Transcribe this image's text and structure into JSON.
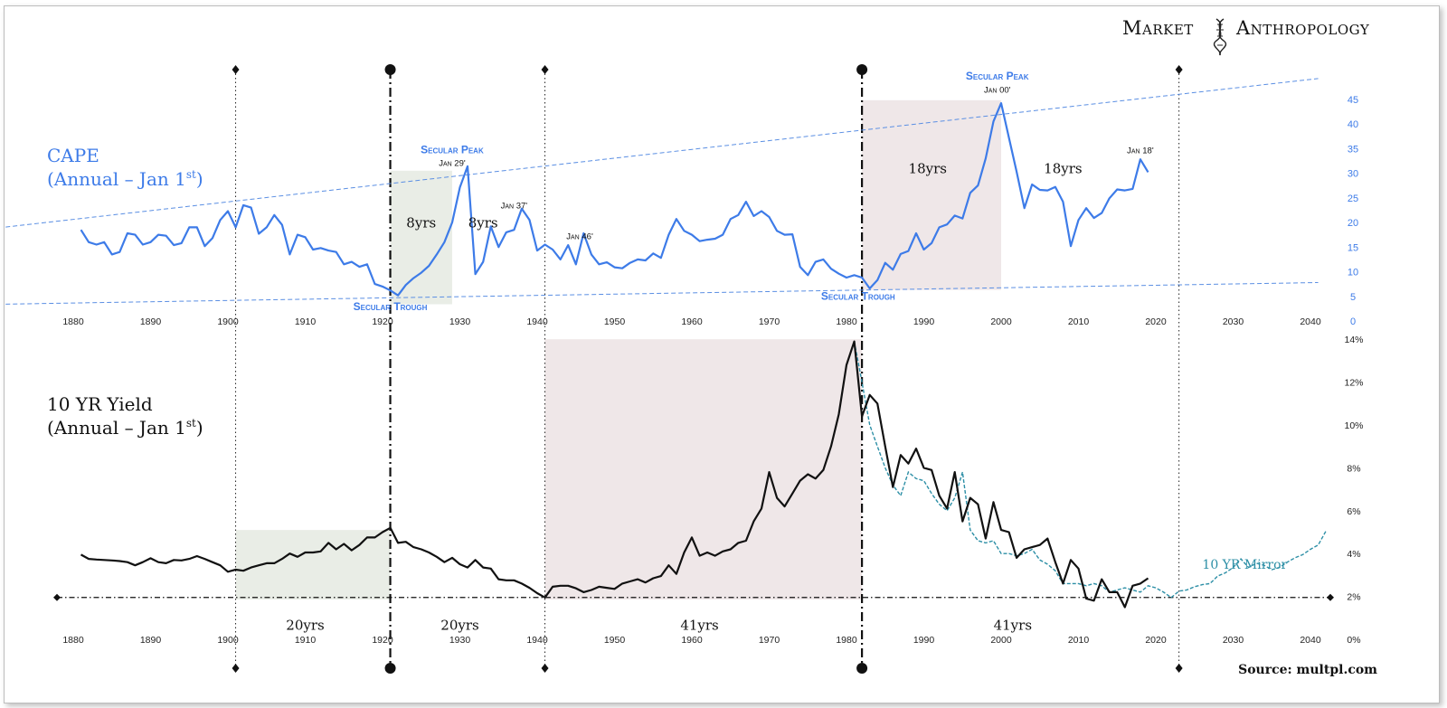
{
  "brand": {
    "left": "Market",
    "right": "Anthropology"
  },
  "source": "Source: multpl.com",
  "colors": {
    "cape": "#3d7be8",
    "yield": "#111111",
    "mirror": "#2d8fa6",
    "green_shade": "#e9ede6",
    "pink_shade": "#efe7e8",
    "trend": "#5b8fe3"
  },
  "chart_data": [
    {
      "type": "line",
      "name": "cape",
      "title_line1": "CAPE",
      "title_line2": "(Annual – Jan 1",
      "title_sup": "st",
      "title_end": ")",
      "x_ticks": [
        1880,
        1890,
        1900,
        1910,
        1920,
        1930,
        1940,
        1950,
        1960,
        1970,
        1980,
        1990,
        2000,
        2010,
        2020,
        2030,
        2040
      ],
      "x_tick_labels": [
        "1880",
        "1890",
        "1900",
        "1910",
        "1920",
        "1930",
        "1940",
        "1950",
        "1960",
        "1970",
        "1980",
        "1990",
        "2000",
        "2010",
        "2020",
        "2030",
        "2040"
      ],
      "y_ticks": [
        "0",
        "5",
        "10",
        "15",
        "20",
        "25",
        "30",
        "35",
        "40",
        "45"
      ],
      "ylim": [
        0,
        45
      ],
      "xlim": [
        1875,
        2045
      ],
      "x": [
        1881,
        1882,
        1883,
        1884,
        1885,
        1886,
        1887,
        1888,
        1889,
        1890,
        1891,
        1892,
        1893,
        1894,
        1895,
        1896,
        1897,
        1898,
        1899,
        1900,
        1901,
        1902,
        1903,
        1904,
        1905,
        1906,
        1907,
        1908,
        1909,
        1910,
        1911,
        1912,
        1913,
        1914,
        1915,
        1916,
        1917,
        1918,
        1919,
        1920,
        1921,
        1922,
        1923,
        1924,
        1925,
        1926,
        1927,
        1928,
        1929,
        1930,
        1931,
        1932,
        1933,
        1934,
        1935,
        1936,
        1937,
        1938,
        1939,
        1940,
        1941,
        1942,
        1943,
        1944,
        1945,
        1946,
        1947,
        1948,
        1949,
        1950,
        1951,
        1952,
        1953,
        1954,
        1955,
        1956,
        1957,
        1958,
        1959,
        1960,
        1961,
        1962,
        1963,
        1964,
        1965,
        1966,
        1967,
        1968,
        1969,
        1970,
        1971,
        1972,
        1973,
        1974,
        1975,
        1976,
        1977,
        1978,
        1979,
        1980,
        1981,
        1982,
        1983,
        1984,
        1985,
        1986,
        1987,
        1988,
        1989,
        1990,
        1991,
        1992,
        1993,
        1994,
        1995,
        1996,
        1997,
        1998,
        1999,
        2000,
        2001,
        2002,
        2003,
        2004,
        2005,
        2006,
        2007,
        2008,
        2009,
        2010,
        2011,
        2012,
        2013,
        2014,
        2015,
        2016,
        2017,
        2018,
        2019
      ],
      "y": [
        18.5,
        16,
        15.5,
        16,
        13.5,
        14,
        17.8,
        17.5,
        15.5,
        16,
        17.5,
        17.3,
        15.4,
        15.8,
        19,
        19,
        15.2,
        16.8,
        20.5,
        22.3,
        19,
        23.5,
        23,
        17.7,
        19,
        21.5,
        19.5,
        13.5,
        17.5,
        17,
        14.5,
        14.8,
        14.3,
        14,
        11.5,
        12,
        11,
        11.5,
        7.5,
        7,
        6.2,
        5.2,
        7.3,
        8.7,
        9.8,
        11.2,
        13.5,
        16,
        20,
        27.1,
        31.4,
        9.5,
        12,
        19.2,
        15,
        18,
        18.5,
        22.8,
        20.5,
        14.3,
        15.5,
        14.5,
        12.5,
        15.4,
        11.5,
        17.8,
        13.5,
        11.5,
        11.9,
        10.9,
        10.7,
        11.8,
        12.5,
        12.3,
        13.7,
        12.8,
        17.5,
        20.7,
        18.3,
        17.5,
        16.2,
        16.5,
        16.7,
        17.5,
        20.7,
        21.5,
        24.2,
        21.3,
        22.3,
        21.1,
        18.3,
        17.5,
        17.6,
        11,
        9.3,
        12,
        12.5,
        10.6,
        9.6,
        8.8,
        9.3,
        8.8,
        6.6,
        8.3,
        11.8,
        10.4,
        13.6,
        14.2,
        17.8,
        14.5,
        15.8,
        19,
        19.6,
        21.4,
        20.8,
        26,
        27.5,
        33,
        40.5,
        44.2,
        37.2,
        30.3,
        22.9,
        27.7,
        26.6,
        26.5,
        27.2,
        24.2,
        15.2,
        20.5,
        22.9,
        20.9,
        21.9,
        24.9,
        26.7,
        26.5,
        26.8,
        32.8,
        30.2
      ],
      "trend_upper": {
        "x": [
          1875,
          2041
        ],
        "y": [
          18.9,
          49.2
        ]
      },
      "trend_lower": {
        "x": [
          1875,
          2041
        ],
        "y": [
          3.4,
          7.8
        ]
      },
      "annotations": [
        {
          "text": "Secular Peak",
          "x": 1929,
          "y": 34,
          "kind": "heading"
        },
        {
          "text": "Jan 29'",
          "x": 1929,
          "y": 31.5,
          "kind": "small"
        },
        {
          "text": "Jan 37'",
          "x": 1937,
          "y": 22.8,
          "kind": "small"
        },
        {
          "text": "Jan 46'",
          "x": 1945.5,
          "y": 16.6,
          "kind": "small"
        },
        {
          "text": "Secular Peak",
          "x": 1999.5,
          "y": 49,
          "kind": "heading"
        },
        {
          "text": "Jan 00'",
          "x": 1999.5,
          "y": 46.3,
          "kind": "small"
        },
        {
          "text": "Jan 18'",
          "x": 2018,
          "y": 34,
          "kind": "small"
        },
        {
          "text": "Secular Trough",
          "x": 1921,
          "y": 2.2,
          "kind": "heading"
        },
        {
          "text": "Secular Trough",
          "x": 1981.5,
          "y": 4.3,
          "kind": "heading"
        },
        {
          "text": "8yrs",
          "x": 1925,
          "y": 19,
          "kind": "period"
        },
        {
          "text": "8yrs",
          "x": 1933,
          "y": 19,
          "kind": "period"
        },
        {
          "text": "18yrs",
          "x": 1990.5,
          "y": 30,
          "kind": "period"
        },
        {
          "text": "18yrs",
          "x": 2008,
          "y": 30,
          "kind": "period"
        }
      ]
    },
    {
      "type": "line",
      "name": "yield",
      "title_line1": "10 YR Yield",
      "title_line2": "(Annual – Jan 1",
      "title_sup": "st",
      "title_end": ")",
      "x_ticks": [
        1880,
        1890,
        1900,
        1910,
        1920,
        1930,
        1940,
        1950,
        1960,
        1970,
        1980,
        1990,
        2000,
        2010,
        2020,
        2030,
        2040
      ],
      "x_tick_labels": [
        "1880",
        "1890",
        "1900",
        "1910",
        "1920",
        "1930",
        "1940",
        "1950",
        "1960",
        "1970",
        "1980",
        "1990",
        "2000",
        "2010",
        "2020",
        "2030",
        "2040"
      ],
      "y_ticks": [
        "0%",
        "2%",
        "4%",
        "6%",
        "8%",
        "10%",
        "12%",
        "14%"
      ],
      "ylim": [
        0,
        14
      ],
      "xlim": [
        1875,
        2045
      ],
      "series": [
        {
          "name": "10 YR Yield",
          "x": [
            1881,
            1882,
            1883,
            1884,
            1885,
            1886,
            1887,
            1888,
            1889,
            1890,
            1891,
            1892,
            1893,
            1894,
            1895,
            1896,
            1897,
            1898,
            1899,
            1900,
            1901,
            1902,
            1903,
            1904,
            1905,
            1906,
            1907,
            1908,
            1909,
            1910,
            1911,
            1912,
            1913,
            1914,
            1915,
            1916,
            1917,
            1918,
            1919,
            1920,
            1921,
            1922,
            1923,
            1924,
            1925,
            1926,
            1927,
            1928,
            1929,
            1930,
            1931,
            1932,
            1933,
            1934,
            1935,
            1936,
            1937,
            1938,
            1939,
            1940,
            1941,
            1942,
            1943,
            1944,
            1945,
            1946,
            1947,
            1948,
            1949,
            1950,
            1951,
            1952,
            1953,
            1954,
            1955,
            1956,
            1957,
            1958,
            1959,
            1960,
            1961,
            1962,
            1963,
            1964,
            1965,
            1966,
            1967,
            1968,
            1969,
            1970,
            1971,
            1972,
            1973,
            1974,
            1975,
            1976,
            1977,
            1978,
            1979,
            1980,
            1981,
            1982,
            1983,
            1984,
            1985,
            1986,
            1987,
            1988,
            1989,
            1990,
            1991,
            1992,
            1993,
            1994,
            1995,
            1996,
            1997,
            1998,
            1999,
            2000,
            2001,
            2002,
            2003,
            2004,
            2005,
            2006,
            2007,
            2008,
            2009,
            2010,
            2011,
            2012,
            2013,
            2014,
            2015,
            2016,
            2017,
            2018,
            2019
          ],
          "y": [
            3.95,
            3.75,
            3.72,
            3.7,
            3.68,
            3.65,
            3.6,
            3.45,
            3.6,
            3.78,
            3.6,
            3.55,
            3.7,
            3.68,
            3.75,
            3.88,
            3.75,
            3.6,
            3.45,
            3.15,
            3.25,
            3.2,
            3.35,
            3.45,
            3.55,
            3.55,
            3.75,
            4.0,
            3.85,
            4.05,
            4.05,
            4.1,
            4.5,
            4.2,
            4.45,
            4.15,
            4.4,
            4.75,
            4.75,
            5.0,
            5.2,
            4.5,
            4.55,
            4.3,
            4.2,
            4.05,
            3.85,
            3.6,
            3.8,
            3.5,
            3.35,
            3.7,
            3.35,
            3.3,
            2.8,
            2.75,
            2.75,
            2.6,
            2.4,
            2.15,
            1.95,
            2.45,
            2.5,
            2.5,
            2.38,
            2.2,
            2.3,
            2.45,
            2.4,
            2.35,
            2.6,
            2.7,
            2.8,
            2.65,
            2.85,
            2.95,
            3.45,
            3.05,
            4.05,
            4.75,
            3.9,
            4.05,
            3.9,
            4.1,
            4.2,
            4.5,
            4.6,
            5.5,
            6.1,
            7.8,
            6.6,
            6.2,
            6.8,
            7.4,
            7.7,
            7.5,
            7.9,
            9.0,
            10.5,
            12.8,
            13.9,
            10.4,
            11.4,
            11.0,
            9.0,
            7.1,
            8.6,
            8.2,
            8.9,
            8.0,
            7.9,
            6.7,
            6.1,
            7.8,
            5.5,
            6.6,
            6.3,
            4.7,
            6.4,
            5.1,
            5.0,
            3.8,
            4.2,
            4.3,
            4.4,
            4.7,
            3.6,
            2.6,
            3.7,
            3.3,
            1.9,
            1.8,
            2.8,
            2.2,
            2.2,
            1.5,
            2.5,
            2.6,
            2.85
          ]
        },
        {
          "name": "10 YR Mirror",
          "x": [
            1981,
            1982,
            1983,
            1984,
            1985,
            1986,
            1987,
            1988,
            1989,
            1990,
            1991,
            1992,
            1993,
            1994,
            1995,
            1996,
            1997,
            1998,
            1999,
            2000,
            2001,
            2002,
            2003,
            2004,
            2005,
            2006,
            2007,
            2008,
            2009,
            2010,
            2011,
            2012,
            2013,
            2014,
            2015,
            2016,
            2017,
            2018,
            2019,
            2020,
            2021,
            2022,
            2023,
            2024,
            2025,
            2026,
            2027,
            2028,
            2029,
            2030,
            2031,
            2032,
            2033,
            2034,
            2035,
            2036,
            2037,
            2038,
            2039,
            2040,
            2041,
            2042
          ],
          "y": [
            13.9,
            12.0,
            10.0,
            9.0,
            8.0,
            7.2,
            6.7,
            7.8,
            7.5,
            7.4,
            6.8,
            6.3,
            6.0,
            6.6,
            7.8,
            5.1,
            4.6,
            4.5,
            4.6,
            4.0,
            4.0,
            3.9,
            4.0,
            4.2,
            3.7,
            3.5,
            3.2,
            2.6,
            2.6,
            2.6,
            2.5,
            2.6,
            2.5,
            2.2,
            2.3,
            2.4,
            2.3,
            2.2,
            2.5,
            2.4,
            2.2,
            1.95,
            2.25,
            2.3,
            2.45,
            2.55,
            2.6,
            2.95,
            3.1,
            3.35,
            3.75,
            3.35,
            3.55,
            3.45,
            3.25,
            3.35,
            3.6,
            3.8,
            3.95,
            4.2,
            4.4,
            5.05
          ]
        }
      ],
      "annotations": [
        {
          "text": "20yrs",
          "x": 1910,
          "y": 1.0,
          "kind": "period"
        },
        {
          "text": "20yrs",
          "x": 1930,
          "y": 1.0,
          "kind": "period"
        },
        {
          "text": "41yrs",
          "x": 1961,
          "y": 1.0,
          "kind": "period"
        },
        {
          "text": "41yrs",
          "x": 2001.5,
          "y": 1.0,
          "kind": "period"
        },
        {
          "text": "10 YR Mirror",
          "x": 2031.5,
          "y": 3.3,
          "kind": "mirror"
        }
      ]
    }
  ],
  "shading": {
    "cape": [
      {
        "x0": 1921,
        "x1": 1929,
        "y0": 3.4,
        "y1": 30.5,
        "color": "green"
      },
      {
        "x0": 1982,
        "x1": 2000,
        "y0": 6.3,
        "y1": 44.8,
        "color": "pink"
      }
    ],
    "yield": [
      {
        "x0": 1901,
        "x1": 1921,
        "y0": 0,
        "y1": 5.1,
        "color": "green"
      },
      {
        "x0": 1941,
        "x1": 1982,
        "y0": 0,
        "y1": 14.0,
        "color": "pink"
      }
    ]
  },
  "vlines": [
    {
      "year": 1901,
      "kind": "dotted"
    },
    {
      "year": 1921,
      "kind": "bold"
    },
    {
      "year": 1941,
      "kind": "dotted"
    },
    {
      "year": 1982,
      "kind": "bold"
    },
    {
      "year": 2023,
      "kind": "dotted"
    }
  ]
}
